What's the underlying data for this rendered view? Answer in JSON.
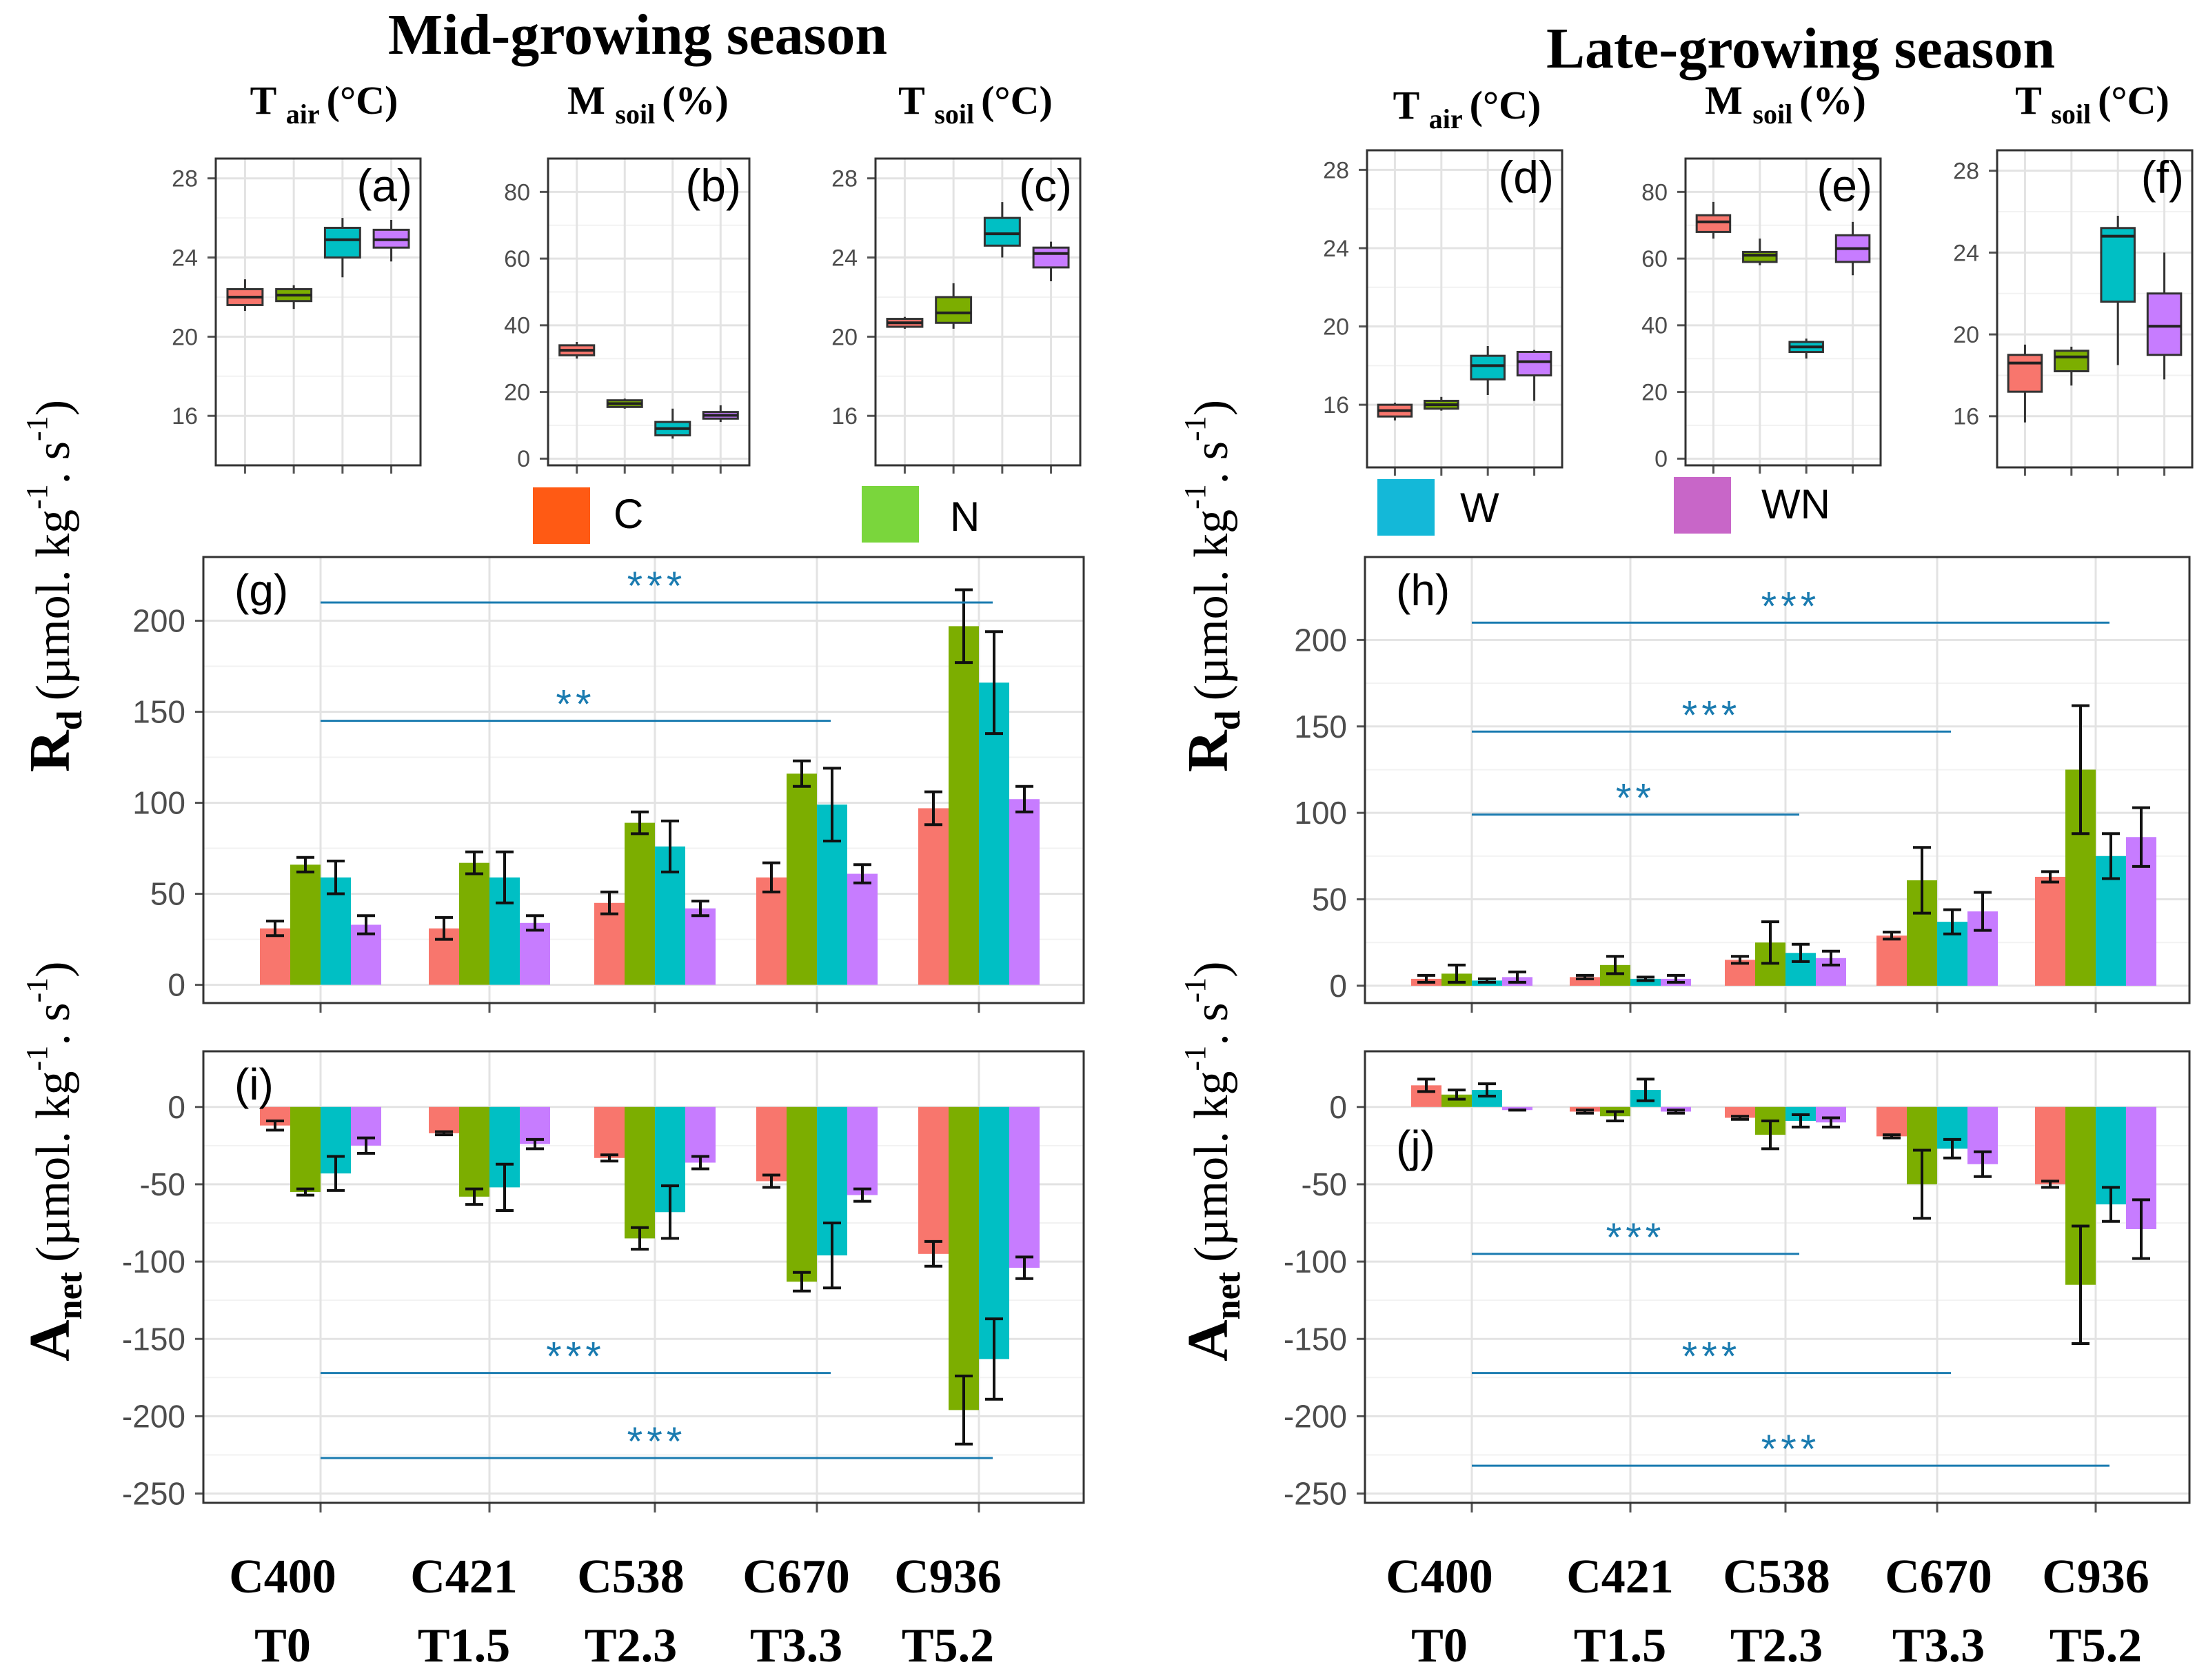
{
  "titles": {
    "mid": "Mid-growing season",
    "late": "Late-growing season"
  },
  "colors": {
    "C": "#f8766d",
    "N": "#7cae00",
    "W": "#00bfc4",
    "WN": "#c77cff",
    "legend_C": "#ff5a14",
    "legend_N": "#7ad63c",
    "legend_W": "#14b8d8",
    "legend_WN": "#c866c8",
    "sig": "#1a7bb0"
  },
  "legend": {
    "mid": [
      {
        "key": "C",
        "label": "C"
      },
      {
        "key": "N",
        "label": "N"
      }
    ],
    "late": [
      {
        "key": "W",
        "label": "W"
      },
      {
        "key": "WN",
        "label": "WN"
      }
    ]
  },
  "ylabels": {
    "rd_sym": "R",
    "rd_sub": "d",
    "rd_unit": "(µmol. kg",
    "rd_sup1": "-1",
    "rd_dot": ". s",
    "rd_sup2": "-1",
    "rd_end": ")",
    "anet_sym": "A",
    "anet_sub": "net",
    "anet_unit": "(µmol. kg",
    "anet_sup1": "-1",
    "anet_dot": ". s",
    "anet_sup2": "-1",
    "anet_end": ")"
  },
  "xcats": [
    {
      "line1": "C400",
      "line2": "T0"
    },
    {
      "line1": "C421",
      "line2": "T1.5"
    },
    {
      "line1": "C538",
      "line2": "T2.3"
    },
    {
      "line1": "C670",
      "line2": "T3.3"
    },
    {
      "line1": "C936",
      "line2": "T5.2"
    }
  ],
  "chart_data": [
    {
      "id": "a",
      "type": "box",
      "label": "(a)",
      "title": "T",
      "title_sub": "air",
      "title_unit": "(°C)",
      "season": "Mid-growing season",
      "ylim": [
        13.5,
        29
      ],
      "yticks": [
        16,
        20,
        24,
        28
      ],
      "boxes": [
        {
          "treatment": "C",
          "lo": 21.3,
          "q1": 21.6,
          "med": 22.0,
          "q3": 22.4,
          "hi": 22.9
        },
        {
          "treatment": "N",
          "lo": 21.4,
          "q1": 21.8,
          "med": 22.1,
          "q3": 22.4,
          "hi": 22.6
        },
        {
          "treatment": "W",
          "lo": 23.0,
          "q1": 24.0,
          "med": 24.9,
          "q3": 25.5,
          "hi": 26.0
        },
        {
          "treatment": "WN",
          "lo": 23.8,
          "q1": 24.5,
          "med": 24.9,
          "q3": 25.4,
          "hi": 25.9
        }
      ]
    },
    {
      "id": "b",
      "type": "box",
      "label": "(b)",
      "title": "M",
      "title_sub": "soil",
      "title_unit": "(%)",
      "season": "Mid-growing season",
      "ylim": [
        -2,
        90
      ],
      "yticks": [
        0,
        20,
        40,
        60,
        80
      ],
      "boxes": [
        {
          "treatment": "C",
          "lo": 30,
          "q1": 31,
          "med": 32.5,
          "q3": 34,
          "hi": 35
        },
        {
          "treatment": "N",
          "lo": 15,
          "q1": 15.5,
          "med": 16.5,
          "q3": 17.5,
          "hi": 18
        },
        {
          "treatment": "W",
          "lo": 6,
          "q1": 7,
          "med": 9,
          "q3": 11,
          "hi": 15
        },
        {
          "treatment": "WN",
          "lo": 11,
          "q1": 12,
          "med": 13,
          "q3": 14,
          "hi": 16
        }
      ]
    },
    {
      "id": "c",
      "type": "box",
      "label": "(c)",
      "title": "T",
      "title_sub": "soil",
      "title_unit": "(°C)",
      "season": "Mid-growing season",
      "ylim": [
        13.5,
        29
      ],
      "yticks": [
        16,
        20,
        24,
        28
      ],
      "boxes": [
        {
          "treatment": "C",
          "lo": 20.4,
          "q1": 20.5,
          "med": 20.7,
          "q3": 20.9,
          "hi": 21.0
        },
        {
          "treatment": "N",
          "lo": 20.4,
          "q1": 20.7,
          "med": 21.2,
          "q3": 22.0,
          "hi": 22.7
        },
        {
          "treatment": "W",
          "lo": 24.0,
          "q1": 24.6,
          "med": 25.2,
          "q3": 26.0,
          "hi": 26.8
        },
        {
          "treatment": "WN",
          "lo": 22.8,
          "q1": 23.5,
          "med": 24.2,
          "q3": 24.5,
          "hi": 24.8
        }
      ]
    },
    {
      "id": "d",
      "type": "box",
      "label": "(d)",
      "title": "T",
      "title_sub": "air",
      "title_unit": "(°C)",
      "season": "Late-growing season",
      "ylim": [
        12.8,
        29
      ],
      "yticks": [
        16,
        20,
        24,
        28
      ],
      "boxes": [
        {
          "treatment": "C",
          "lo": 15.2,
          "q1": 15.4,
          "med": 15.7,
          "q3": 16.0,
          "hi": 16.1
        },
        {
          "treatment": "N",
          "lo": 15.7,
          "q1": 15.8,
          "med": 16.0,
          "q3": 16.2,
          "hi": 16.4
        },
        {
          "treatment": "W",
          "lo": 16.5,
          "q1": 17.3,
          "med": 18.0,
          "q3": 18.5,
          "hi": 19.0
        },
        {
          "treatment": "WN",
          "lo": 16.2,
          "q1": 17.5,
          "med": 18.2,
          "q3": 18.7,
          "hi": 18.8
        }
      ]
    },
    {
      "id": "e",
      "type": "box",
      "label": "(e)",
      "title": "M",
      "title_sub": "soil",
      "title_unit": "(%)",
      "season": "Late-growing season",
      "ylim": [
        -2,
        90
      ],
      "yticks": [
        0,
        20,
        40,
        60,
        80
      ],
      "boxes": [
        {
          "treatment": "C",
          "lo": 66,
          "q1": 68,
          "med": 71,
          "q3": 73,
          "hi": 77
        },
        {
          "treatment": "N",
          "lo": 58,
          "q1": 59,
          "med": 61,
          "q3": 62,
          "hi": 66
        },
        {
          "treatment": "W",
          "lo": 30,
          "q1": 32,
          "med": 33.5,
          "q3": 35,
          "hi": 36
        },
        {
          "treatment": "WN",
          "lo": 55,
          "q1": 59,
          "med": 63,
          "q3": 67,
          "hi": 71
        }
      ]
    },
    {
      "id": "f",
      "type": "box",
      "label": "(f)",
      "title": "T",
      "title_sub": "soil",
      "title_unit": "(°C)",
      "season": "Late-growing season",
      "ylim": [
        13.5,
        29
      ],
      "yticks": [
        16,
        20,
        24,
        28
      ],
      "boxes": [
        {
          "treatment": "C",
          "lo": 15.7,
          "q1": 17.2,
          "med": 18.6,
          "q3": 19.0,
          "hi": 19.5
        },
        {
          "treatment": "N",
          "lo": 17.5,
          "q1": 18.2,
          "med": 18.9,
          "q3": 19.2,
          "hi": 19.4
        },
        {
          "treatment": "W",
          "lo": 18.5,
          "q1": 21.6,
          "med": 24.8,
          "q3": 25.2,
          "hi": 25.8
        },
        {
          "treatment": "WN",
          "lo": 17.8,
          "q1": 19.0,
          "med": 20.4,
          "q3": 22.0,
          "hi": 24.0
        }
      ]
    },
    {
      "id": "g",
      "type": "bar",
      "label": "(g)",
      "measure": "Rd",
      "season": "Mid-growing season",
      "ylim": [
        -10,
        235
      ],
      "yticks": [
        0,
        50,
        100,
        150,
        200
      ],
      "series_order": [
        "C",
        "N",
        "W",
        "WN"
      ],
      "categories": [
        "C400 T0",
        "C421 T1.5",
        "C538 T2.3",
        "C670 T3.3",
        "C936 T5.2"
      ],
      "series": [
        {
          "name": "C",
          "values": [
            31,
            31,
            45,
            59,
            97
          ],
          "errors": [
            4,
            6,
            6,
            8,
            9
          ]
        },
        {
          "name": "N",
          "values": [
            66,
            67,
            89,
            116,
            197
          ],
          "errors": [
            4,
            6,
            6,
            7,
            20
          ]
        },
        {
          "name": "W",
          "values": [
            59,
            59,
            76,
            99,
            166
          ],
          "errors": [
            9,
            14,
            14,
            20,
            28
          ]
        },
        {
          "name": "WN",
          "values": [
            33,
            34,
            42,
            61,
            102
          ],
          "errors": [
            5,
            4,
            4,
            5,
            7
          ]
        }
      ],
      "significance": [
        {
          "from": 0,
          "to": 4,
          "y": 210,
          "text": "***"
        },
        {
          "from": 0,
          "to": 3,
          "y": 145,
          "text": "**"
        }
      ]
    },
    {
      "id": "h",
      "type": "bar",
      "label": "(h)",
      "measure": "Rd",
      "season": "Late-growing season",
      "ylim": [
        -10,
        248
      ],
      "yticks": [
        0,
        50,
        100,
        150,
        200
      ],
      "series_order": [
        "C",
        "N",
        "W",
        "WN"
      ],
      "categories": [
        "C400 T0",
        "C421 T1.5",
        "C538 T2.3",
        "C670 T3.3",
        "C936 T5.2"
      ],
      "series": [
        {
          "name": "C",
          "values": [
            4,
            5,
            15,
            29,
            63
          ],
          "errors": [
            2,
            1,
            2,
            2,
            3
          ]
        },
        {
          "name": "N",
          "values": [
            7,
            12,
            25,
            61,
            125
          ],
          "errors": [
            5,
            5,
            12,
            19,
            37
          ]
        },
        {
          "name": "W",
          "values": [
            3,
            4,
            19,
            37,
            75
          ],
          "errors": [
            1,
            1,
            5,
            7,
            13
          ]
        },
        {
          "name": "WN",
          "values": [
            5,
            4,
            16,
            43,
            86
          ],
          "errors": [
            3,
            2,
            4,
            11,
            17
          ]
        }
      ],
      "significance": [
        {
          "from": 0,
          "to": 4,
          "y": 210,
          "text": "***"
        },
        {
          "from": 0,
          "to": 3,
          "y": 147,
          "text": "***"
        },
        {
          "from": 0,
          "to": 2,
          "y": 99,
          "text": "**"
        }
      ]
    },
    {
      "id": "i",
      "type": "bar",
      "label": "(i)",
      "measure": "Anet",
      "season": "Mid-growing season",
      "ylim": [
        -256,
        36
      ],
      "yticks": [
        0,
        -50,
        -100,
        -150,
        -200,
        -250
      ],
      "series_order": [
        "C",
        "N",
        "W",
        "WN"
      ],
      "categories": [
        "C400 T0",
        "C421 T1.5",
        "C538 T2.3",
        "C670 T3.3",
        "C936 T5.2"
      ],
      "series": [
        {
          "name": "C",
          "values": [
            -12,
            -17,
            -33,
            -48,
            -95
          ],
          "errors": [
            3,
            1,
            2,
            4,
            8
          ]
        },
        {
          "name": "N",
          "values": [
            -55,
            -58,
            -85,
            -113,
            -196
          ],
          "errors": [
            2,
            5,
            7,
            6,
            22
          ]
        },
        {
          "name": "W",
          "values": [
            -43,
            -52,
            -68,
            -96,
            -163
          ],
          "errors": [
            11,
            15,
            17,
            21,
            26
          ]
        },
        {
          "name": "WN",
          "values": [
            -25,
            -24,
            -36,
            -57,
            -104
          ],
          "errors": [
            5,
            3,
            4,
            4,
            7
          ]
        }
      ],
      "significance": [
        {
          "from": 0,
          "to": 3,
          "y": -172,
          "text": "***"
        },
        {
          "from": 0,
          "to": 4,
          "y": -227,
          "text": "***"
        }
      ]
    },
    {
      "id": "j",
      "type": "bar",
      "label": "(j)",
      "measure": "Anet",
      "season": "Late-growing season",
      "ylim": [
        -256,
        36
      ],
      "yticks": [
        0,
        -50,
        -100,
        -150,
        -200,
        -250
      ],
      "series_order": [
        "C",
        "N",
        "W",
        "WN"
      ],
      "categories": [
        "C400 T0",
        "C421 T1.5",
        "C538 T2.3",
        "C670 T3.3",
        "C936 T5.2"
      ],
      "series": [
        {
          "name": "C",
          "values": [
            14,
            -3,
            -7,
            -19,
            -50
          ],
          "errors": [
            4,
            1,
            1,
            1,
            2
          ]
        },
        {
          "name": "N",
          "values": [
            8,
            -6,
            -18,
            -50,
            -115
          ],
          "errors": [
            3,
            3,
            9,
            22,
            38
          ]
        },
        {
          "name": "W",
          "values": [
            11,
            11,
            -9,
            -27,
            -63
          ],
          "errors": [
            4,
            7,
            4,
            6,
            11
          ]
        },
        {
          "name": "WN",
          "values": [
            -2,
            -3,
            -10,
            -37,
            -79
          ],
          "errors": [
            0,
            1,
            3,
            8,
            19
          ]
        }
      ],
      "significance": [
        {
          "from": 0,
          "to": 2,
          "y": -95,
          "text": "***"
        },
        {
          "from": 0,
          "to": 3,
          "y": -172,
          "text": "***"
        },
        {
          "from": 0,
          "to": 4,
          "y": -232,
          "text": "***"
        }
      ]
    }
  ]
}
